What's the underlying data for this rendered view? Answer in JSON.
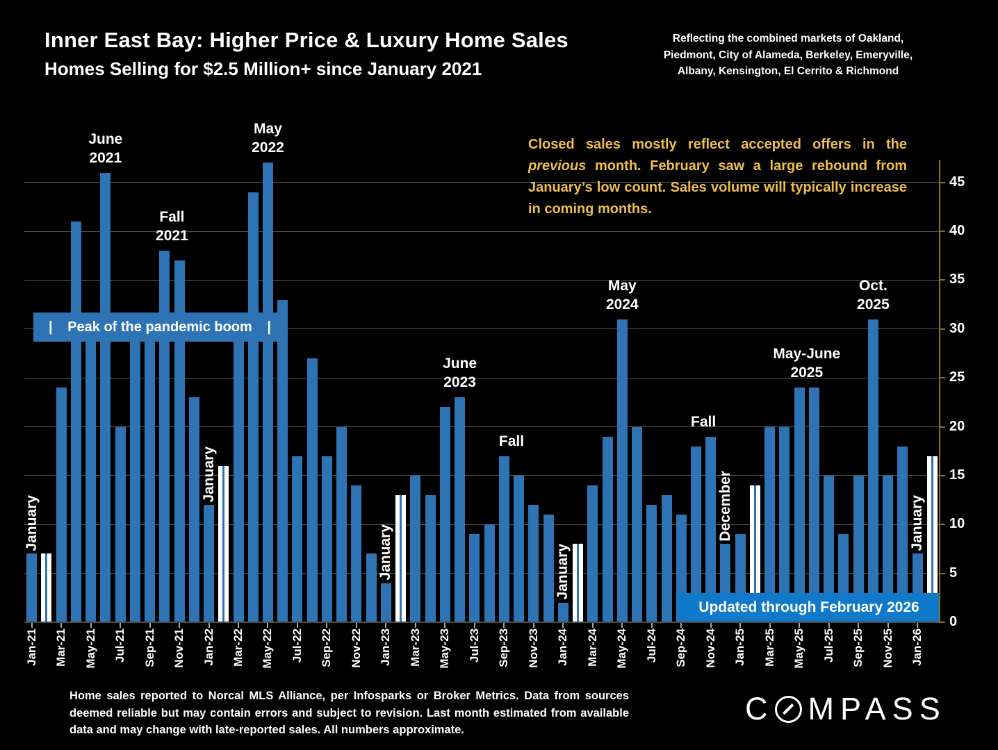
{
  "title": "Inner East Bay: Higher Price & Luxury Home Sales",
  "subtitle": "Homes Selling for $2.5 Million+ since January 2021",
  "market_note_lines": [
    "Reflecting the combined markets of Oakland,",
    "Piedmont, City of Alameda, Berkeley, Emeryville,",
    "Albany, Kensington, El Cerrito & Richmond"
  ],
  "callout": {
    "pre": "Closed sales mostly reflect accepted offers in the ",
    "italic": "previous",
    "post": " month. February saw a large rebound from January’s low count. Sales volume will typically increase in coming months.",
    "color": "#EFBE4D"
  },
  "banners": {
    "peak": {
      "text": "Peak of the pandemic boom",
      "pipe": "|"
    },
    "updated": {
      "text": "Updated through February 2026"
    }
  },
  "footer": "Home sales reported to Norcal MLS Alliance, per Infosparks or Broker Metrics. Data from sources deemed reliable but may contain errors and subject to revision.  Last month estimated from available data and may change with late-reported sales. All numbers approximate.",
  "logo": "COMPASS",
  "chart_data": {
    "type": "bar",
    "title": "Homes Selling for $2.5 Million+ since January 2021",
    "xlabel": "",
    "ylabel": "",
    "ylim": [
      0,
      48
    ],
    "yticks": [
      0,
      5,
      10,
      15,
      20,
      25,
      30,
      35,
      40,
      45
    ],
    "grid": "horizontal",
    "bar_color": "#2E74B5",
    "highlight_color": "#FFFFFF",
    "x": [
      "Jan-21",
      "Feb-21",
      "Mar-21",
      "Apr-21",
      "May-21",
      "Jun-21",
      "Jul-21",
      "Aug-21",
      "Sep-21",
      "Oct-21",
      "Nov-21",
      "Dec-21",
      "Jan-22",
      "Feb-22",
      "Mar-22",
      "Apr-22",
      "May-22",
      "Jun-22",
      "Jul-22",
      "Aug-22",
      "Sep-22",
      "Oct-22",
      "Nov-22",
      "Dec-22",
      "Jan-23",
      "Feb-23",
      "Mar-23",
      "Apr-23",
      "May-23",
      "Jun-23",
      "Jul-23",
      "Aug-23",
      "Sep-23",
      "Oct-23",
      "Nov-23",
      "Dec-23",
      "Jan-24",
      "Feb-24",
      "Mar-24",
      "Apr-24",
      "May-24",
      "Jun-24",
      "Jul-24",
      "Aug-24",
      "Sep-24",
      "Oct-24",
      "Nov-24",
      "Dec-24",
      "Jan-25",
      "Feb-25",
      "Mar-25",
      "Apr-25",
      "May-25",
      "Jun-25",
      "Jul-25",
      "Aug-25",
      "Sep-25",
      "Oct-25",
      "Nov-25",
      "Dec-25",
      "Jan-26",
      "Feb-26"
    ],
    "values": [
      7,
      7,
      24,
      41,
      30,
      46,
      20,
      30,
      30,
      38,
      37,
      23,
      12,
      16,
      30,
      44,
      47,
      33,
      17,
      27,
      17,
      20,
      14,
      7,
      4,
      13,
      15,
      13,
      22,
      23,
      9,
      10,
      17,
      15,
      12,
      11,
      2,
      8,
      14,
      19,
      31,
      20,
      12,
      13,
      11,
      18,
      19,
      8,
      9,
      14,
      20,
      20,
      24,
      24,
      15,
      9,
      15,
      31,
      15,
      18,
      7,
      17
    ],
    "highlighted_months": [
      "Feb-21",
      "Feb-22",
      "Feb-23",
      "Feb-24",
      "Feb-25",
      "Feb-26"
    ],
    "values_hidden_behind_banner_estimated": [
      "May-21",
      "Aug-21",
      "Sep-21",
      "Mar-22"
    ],
    "x_tick_labels": [
      "Jan-21",
      "Mar-21",
      "May-21",
      "Jul-21",
      "Sep-21",
      "Nov-21",
      "Jan-22",
      "Mar-22",
      "May-22",
      "Jul-22",
      "Sep-22",
      "Nov-22",
      "Jan-23",
      "Mar-23",
      "May-23",
      "Jul-23",
      "Sep-23",
      "Nov-23",
      "Jan-24",
      "Mar-24",
      "May-24",
      "Jul-24",
      "Sep-24",
      "Nov-24",
      "Jan-25",
      "Mar-25",
      "May-25",
      "Jul-25",
      "Sep-25",
      "Nov-25",
      "Jan-26"
    ],
    "annotations": [
      {
        "text": "June\n2021",
        "anchor": "Jun-21"
      },
      {
        "text": "Fall\n2021",
        "anchor": "Oct-21/Nov-21"
      },
      {
        "text": "May\n2022",
        "anchor": "May-22"
      },
      {
        "text": "June\n2023",
        "anchor": "Jun-23"
      },
      {
        "text": "Fall",
        "anchor": "Sep-23/Oct-23"
      },
      {
        "text": "May\n2024",
        "anchor": "May-24"
      },
      {
        "text": "Fall",
        "anchor": "Oct-24/Nov-24"
      },
      {
        "text": "May-June\n2025",
        "anchor": "May-25/Jun-25"
      },
      {
        "text": "Oct.\n2025",
        "anchor": "Oct-25"
      }
    ],
    "vertical_labels": [
      {
        "text": "January",
        "anchor": "Jan-21"
      },
      {
        "text": "January",
        "anchor": "Jan-22"
      },
      {
        "text": "January",
        "anchor": "Jan-23"
      },
      {
        "text": "January",
        "anchor": "Jan-24"
      },
      {
        "text": "December",
        "anchor": "Dec-24"
      },
      {
        "text": "January",
        "anchor": "Jan-26"
      }
    ],
    "axis_color": "#8F6F1D",
    "legend": "none"
  }
}
